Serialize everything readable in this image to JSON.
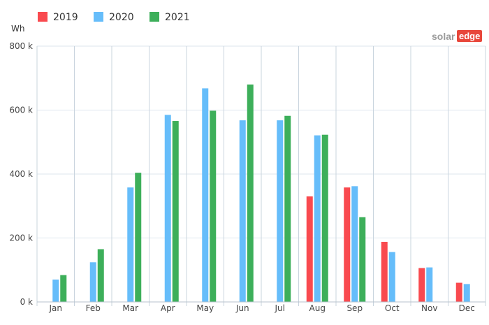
{
  "brand": {
    "solar": "solar",
    "edge": "edge",
    "colors": {
      "text": "#9b9b9b",
      "box": "#e8473b"
    }
  },
  "chart_data": {
    "type": "bar",
    "unit_label": "Wh",
    "categories": [
      "Jan",
      "Feb",
      "Mar",
      "Apr",
      "May",
      "Jun",
      "Jul",
      "Aug",
      "Sep",
      "Oct",
      "Nov",
      "Dec"
    ],
    "series": [
      {
        "name": "2019",
        "color": "#f94a4f",
        "values": [
          null,
          null,
          null,
          null,
          null,
          null,
          null,
          330000,
          358000,
          188000,
          106000,
          60000
        ]
      },
      {
        "name": "2020",
        "color": "#66bdfa",
        "values": [
          70000,
          124000,
          358000,
          585000,
          668000,
          568000,
          568000,
          521000,
          362000,
          156000,
          108000,
          56000
        ]
      },
      {
        "name": "2021",
        "color": "#3daf5a",
        "values": [
          84000,
          165000,
          404000,
          566000,
          598000,
          680000,
          582000,
          523000,
          265000,
          null,
          null,
          null
        ]
      }
    ],
    "ylim": [
      0,
      800000
    ],
    "yticks": [
      0,
      200000,
      400000,
      600000,
      800000
    ],
    "ytick_labels": [
      "0 k",
      "200 k",
      "400 k",
      "600 k",
      "800 k"
    ],
    "grid": true,
    "legend": "top-left"
  }
}
